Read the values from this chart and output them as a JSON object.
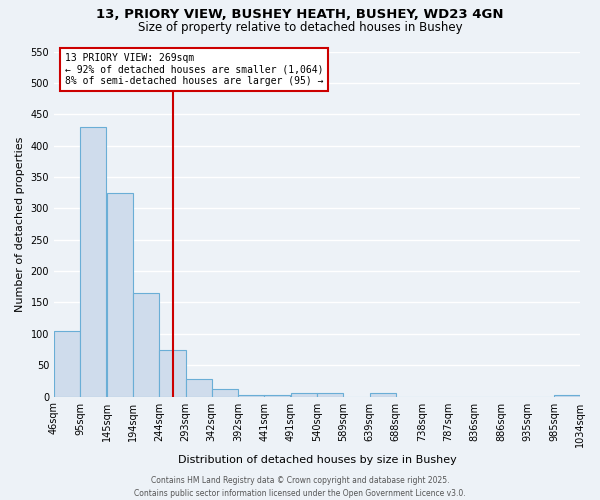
{
  "title_line1": "13, PRIORY VIEW, BUSHEY HEATH, BUSHEY, WD23 4GN",
  "title_line2": "Size of property relative to detached houses in Bushey",
  "bar_values": [
    105,
    430,
    325,
    165,
    75,
    28,
    12,
    3,
    3,
    5,
    5,
    0,
    5,
    0,
    0,
    0,
    0,
    0,
    0,
    2
  ],
  "bin_edges": [
    46,
    95,
    145,
    194,
    244,
    293,
    342,
    392,
    441,
    491,
    540,
    589,
    639,
    688,
    738,
    787,
    836,
    886,
    935,
    985,
    1034
  ],
  "bin_labels": [
    "46sqm",
    "95sqm",
    "145sqm",
    "194sqm",
    "244sqm",
    "293sqm",
    "342sqm",
    "392sqm",
    "441sqm",
    "491sqm",
    "540sqm",
    "589sqm",
    "639sqm",
    "688sqm",
    "738sqm",
    "787sqm",
    "836sqm",
    "886sqm",
    "935sqm",
    "985sqm",
    "1034sqm"
  ],
  "bar_color": "#cfdcec",
  "bar_edge_color": "#6aaed6",
  "vertical_line_x": 269,
  "vline_color": "#cc0000",
  "ylabel": "Number of detached properties",
  "xlabel": "Distribution of detached houses by size in Bushey",
  "ylim": [
    0,
    550
  ],
  "yticks": [
    0,
    50,
    100,
    150,
    200,
    250,
    300,
    350,
    400,
    450,
    500,
    550
  ],
  "annotation_title": "13 PRIORY VIEW: 269sqm",
  "annotation_line1": "← 92% of detached houses are smaller (1,064)",
  "annotation_line2": "8% of semi-detached houses are larger (95) →",
  "annotation_box_color": "#ffffff",
  "annotation_box_edge": "#cc0000",
  "footer_line1": "Contains HM Land Registry data © Crown copyright and database right 2025.",
  "footer_line2": "Contains public sector information licensed under the Open Government Licence v3.0.",
  "bg_color": "#edf2f7",
  "grid_color": "#ffffff",
  "title_fontsize": 9.5,
  "subtitle_fontsize": 8.5,
  "axis_label_fontsize": 8,
  "tick_fontsize": 7,
  "footer_fontsize": 5.5
}
